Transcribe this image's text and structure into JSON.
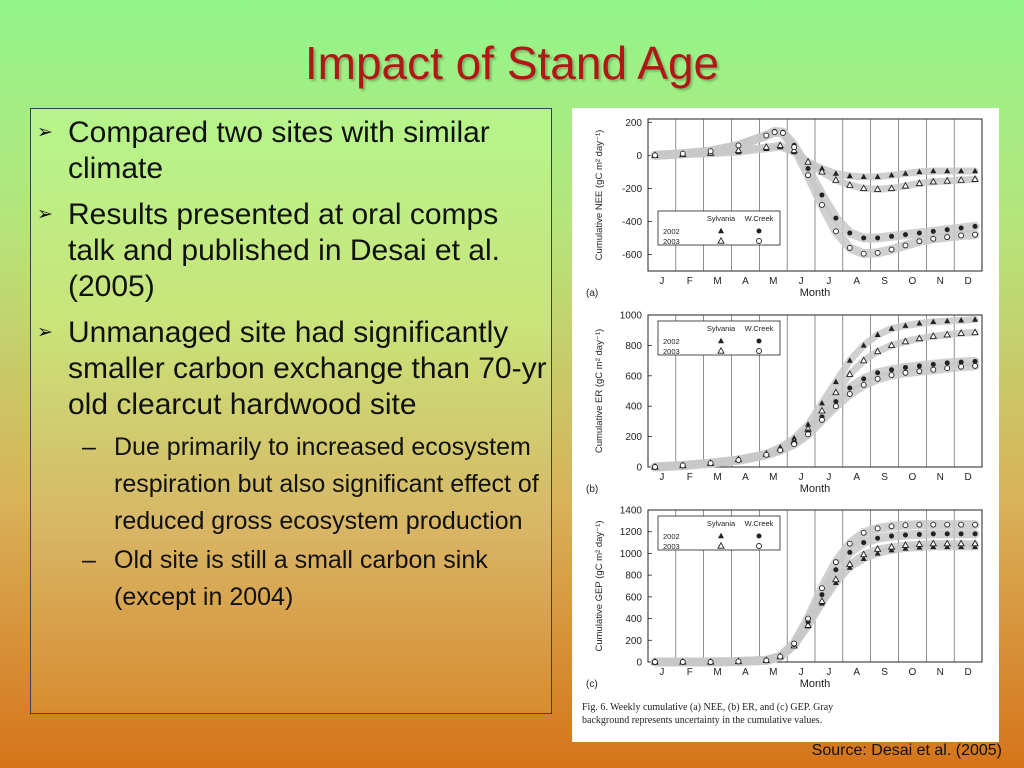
{
  "slide": {
    "title": "Impact of Stand Age",
    "bullets": [
      "Compared two sites with similar climate",
      "Results presented at oral comps talk and published in Desai et al. (2005)",
      "Unmanaged site had significantly smaller carbon exchange than 70-yr old clearcut hardwood site"
    ],
    "sub_bullets": [
      "Due primarily to increased ecosystem respiration but also significant effect of reduced gross ecosystem production",
      "Old site is still a small carbon sink (except in 2004)"
    ],
    "source": "Source: Desai et al. (2005)",
    "caption_line1": "Fig. 6.  Weekly cumulative (a) NEE, (b) ER, and (c) GEP. Gray",
    "caption_line2": "background represents uncertainty in the cumulative values.",
    "colors": {
      "title": "#b01818",
      "accent_band": "#c8c8c8"
    }
  },
  "chart_data": [
    {
      "type": "scatter",
      "panel_label": "(a)",
      "ylabel": "Cumulative NEE (gC m² day⁻¹)",
      "xlabel": "Month",
      "x_ticks": [
        "J",
        "F",
        "M",
        "A",
        "M",
        "J",
        "J",
        "A",
        "S",
        "O",
        "N",
        "D"
      ],
      "yticks": [
        200,
        0,
        -200,
        -400,
        -600
      ],
      "ylim": [
        -700,
        220
      ],
      "legend_headers": [
        "Sylvania",
        "W.Creek"
      ],
      "legend_rows": [
        "2002",
        "2003"
      ],
      "series": [
        {
          "name": "Sylvania 2002",
          "marker": "filled-triangle",
          "x": [
            0,
            1,
            2,
            3,
            4,
            4.5,
            5,
            5.5,
            6,
            6.5,
            7,
            7.5,
            8,
            8.5,
            9,
            9.5,
            10,
            10.5,
            11,
            11.5
          ],
          "y": [
            0,
            5,
            10,
            20,
            40,
            50,
            20,
            -40,
            -80,
            -110,
            -125,
            -130,
            -130,
            -120,
            -110,
            -100,
            -95,
            -95,
            -95,
            -95
          ]
        },
        {
          "name": "Sylvania 2003",
          "marker": "open-triangle",
          "x": [
            0,
            1,
            2,
            3,
            4,
            4.5,
            5,
            5.5,
            6,
            6.5,
            7,
            7.5,
            8,
            8.5,
            9,
            9.5,
            10,
            10.5,
            11,
            11.5
          ],
          "y": [
            0,
            5,
            15,
            30,
            50,
            60,
            30,
            -40,
            -100,
            -150,
            -180,
            -200,
            -205,
            -200,
            -185,
            -170,
            -160,
            -155,
            -150,
            -145
          ]
        },
        {
          "name": "W.Creek 2002",
          "marker": "filled-circle",
          "x": [
            0,
            1,
            2,
            3,
            4,
            4.3,
            4.6,
            5,
            5.5,
            6,
            6.5,
            7,
            7.5,
            8,
            8.5,
            9,
            9.5,
            10,
            10.5,
            11,
            11.5
          ],
          "y": [
            0,
            10,
            25,
            60,
            120,
            145,
            140,
            60,
            -80,
            -240,
            -380,
            -470,
            -500,
            -500,
            -490,
            -480,
            -470,
            -460,
            -450,
            -440,
            -430
          ]
        },
        {
          "name": "W.Creek 2003",
          "marker": "open-circle",
          "x": [
            0,
            1,
            2,
            3,
            4,
            4.3,
            4.6,
            5,
            5.5,
            6,
            6.5,
            7,
            7.5,
            8,
            8.5,
            9,
            9.5,
            10,
            10.5,
            11,
            11.5
          ],
          "y": [
            0,
            10,
            25,
            60,
            120,
            140,
            135,
            50,
            -120,
            -300,
            -460,
            -560,
            -595,
            -590,
            -570,
            -545,
            -520,
            -505,
            -495,
            -485,
            -480
          ]
        }
      ]
    },
    {
      "type": "scatter",
      "panel_label": "(b)",
      "ylabel": "Cumulative ER (gC m² day⁻¹)",
      "xlabel": "Month",
      "x_ticks": [
        "J",
        "F",
        "M",
        "A",
        "M",
        "J",
        "J",
        "A",
        "S",
        "O",
        "N",
        "D"
      ],
      "yticks": [
        1000,
        800,
        600,
        400,
        200,
        0
      ],
      "ylim": [
        0,
        1000
      ],
      "legend_headers": [
        "Sylvania",
        "W.Creek"
      ],
      "legend_rows": [
        "2002",
        "2003"
      ],
      "series": [
        {
          "name": "Sylvania 2002",
          "marker": "filled-triangle",
          "x": [
            0,
            1,
            2,
            3,
            4,
            4.5,
            5,
            5.5,
            6,
            6.5,
            7,
            7.5,
            8,
            8.5,
            9,
            9.5,
            10,
            10.5,
            11,
            11.5
          ],
          "y": [
            0,
            10,
            25,
            50,
            90,
            130,
            190,
            280,
            420,
            560,
            700,
            800,
            870,
            910,
            930,
            945,
            955,
            960,
            965,
            970
          ]
        },
        {
          "name": "Sylvania 2003",
          "marker": "open-triangle",
          "x": [
            0,
            1,
            2,
            3,
            4,
            4.5,
            5,
            5.5,
            6,
            6.5,
            7,
            7.5,
            8,
            8.5,
            9,
            9.5,
            10,
            10.5,
            11,
            11.5
          ],
          "y": [
            0,
            10,
            25,
            50,
            85,
            120,
            170,
            250,
            370,
            490,
            610,
            700,
            760,
            800,
            825,
            845,
            860,
            870,
            880,
            885
          ]
        },
        {
          "name": "W.Creek 2002",
          "marker": "filled-circle",
          "x": [
            0,
            1,
            2,
            3,
            4,
            4.5,
            5,
            5.5,
            6,
            6.5,
            7,
            7.5,
            8,
            8.5,
            9,
            9.5,
            10,
            10.5,
            11,
            11.5
          ],
          "y": [
            0,
            10,
            25,
            45,
            80,
            115,
            160,
            230,
            330,
            430,
            520,
            580,
            620,
            640,
            655,
            665,
            675,
            685,
            690,
            695
          ]
        },
        {
          "name": "W.Creek 2003",
          "marker": "open-circle",
          "x": [
            0,
            1,
            2,
            3,
            4,
            4.5,
            5,
            5.5,
            6,
            6.5,
            7,
            7.5,
            8,
            8.5,
            9,
            9.5,
            10,
            10.5,
            11,
            11.5
          ],
          "y": [
            0,
            10,
            25,
            45,
            80,
            110,
            150,
            215,
            310,
            400,
            480,
            540,
            580,
            605,
            620,
            630,
            640,
            650,
            660,
            665
          ]
        }
      ]
    },
    {
      "type": "scatter",
      "panel_label": "(c)",
      "ylabel": "Cumulative GEP (gC m² day⁻¹)",
      "xlabel": "Month",
      "x_ticks": [
        "J",
        "F",
        "M",
        "A",
        "M",
        "J",
        "J",
        "A",
        "S",
        "O",
        "N",
        "D"
      ],
      "yticks": [
        1400,
        1200,
        1000,
        800,
        600,
        400,
        200,
        0
      ],
      "ylim": [
        0,
        1400
      ],
      "legend_headers": [
        "Sylvania",
        "W.Creek"
      ],
      "legend_rows": [
        "2002",
        "2003"
      ],
      "series": [
        {
          "name": "Sylvania 2002",
          "marker": "filled-triangle",
          "x": [
            0,
            1,
            2,
            3,
            4,
            4.5,
            5,
            5.5,
            6,
            6.5,
            7,
            7.5,
            8,
            8.5,
            9,
            9.5,
            10,
            10.5,
            11,
            11.5
          ],
          "y": [
            0,
            0,
            0,
            5,
            15,
            50,
            150,
            330,
            540,
            730,
            870,
            950,
            1000,
            1030,
            1045,
            1055,
            1060,
            1060,
            1060,
            1060
          ]
        },
        {
          "name": "Sylvania 2003",
          "marker": "open-triangle",
          "x": [
            0,
            1,
            2,
            3,
            4,
            4.5,
            5,
            5.5,
            6,
            6.5,
            7,
            7.5,
            8,
            8.5,
            9,
            9.5,
            10,
            10.5,
            11,
            11.5
          ],
          "y": [
            0,
            0,
            0,
            5,
            15,
            50,
            150,
            340,
            560,
            760,
            900,
            990,
            1040,
            1060,
            1075,
            1085,
            1090,
            1090,
            1090,
            1090
          ]
        },
        {
          "name": "W.Creek 2002",
          "marker": "filled-circle",
          "x": [
            0,
            1,
            2,
            3,
            4,
            4.5,
            5,
            5.5,
            6,
            6.5,
            7,
            7.5,
            8,
            8.5,
            9,
            9.5,
            10,
            10.5,
            11,
            11.5
          ],
          "y": [
            0,
            0,
            0,
            5,
            15,
            50,
            160,
            370,
            620,
            850,
            1010,
            1100,
            1140,
            1160,
            1170,
            1175,
            1180,
            1180,
            1180,
            1180
          ]
        },
        {
          "name": "W.Creek 2003",
          "marker": "open-circle",
          "x": [
            0,
            1,
            2,
            3,
            4,
            4.5,
            5,
            5.5,
            6,
            6.5,
            7,
            7.5,
            8,
            8.5,
            9,
            9.5,
            10,
            10.5,
            11,
            11.5
          ],
          "y": [
            0,
            0,
            0,
            5,
            15,
            50,
            170,
            400,
            680,
            920,
            1090,
            1190,
            1230,
            1250,
            1260,
            1265,
            1265,
            1265,
            1265,
            1265
          ]
        }
      ]
    }
  ]
}
